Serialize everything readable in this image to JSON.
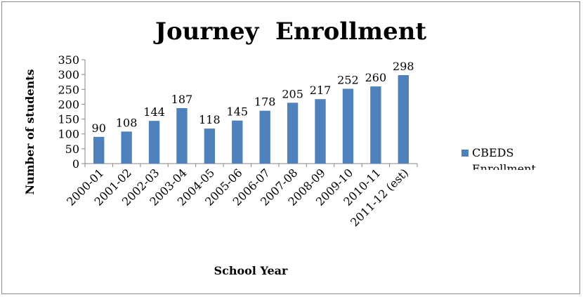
{
  "chart_data": {
    "type": "bar",
    "title": "Journey  Enrollment",
    "xlabel": "School Year",
    "ylabel": "Number of students",
    "categories": [
      "2000-01",
      "2001-02",
      "2002-03",
      "2003-04",
      "2004-05",
      "2005-06",
      "2006-07",
      "2007-08",
      "2008-09",
      "2009-10",
      "2010-11",
      "2011-12 (est)"
    ],
    "series": [
      {
        "name": "CBEDS Enrollment",
        "values": [
          90,
          108,
          144,
          187,
          118,
          145,
          178,
          205,
          217,
          252,
          260,
          298
        ],
        "color": "#4f81bd"
      }
    ],
    "ylim": [
      0,
      350
    ],
    "yticks": [
      0,
      50,
      100,
      150,
      200,
      250,
      300,
      350
    ],
    "grid": false,
    "legend": "right",
    "data_labels": true
  }
}
